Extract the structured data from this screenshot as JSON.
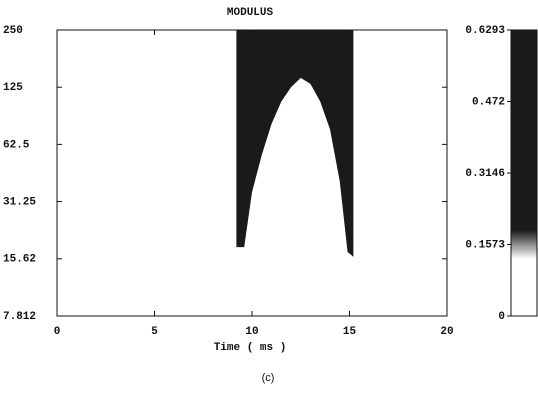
{
  "chart_data": {
    "type": "scalogram",
    "title": "MODULUS",
    "xlabel": "Time ( ms )",
    "caption": "(c)",
    "xlim": [
      0,
      20
    ],
    "xticks": [
      0,
      5,
      10,
      15,
      20
    ],
    "ylim": [
      7.812,
      250
    ],
    "yticks": [
      7.812,
      15.62,
      31.25,
      62.5,
      125,
      250
    ],
    "log_scale_y": true,
    "region": {
      "color": "#1a1a1a",
      "x": [
        9.2,
        9.6,
        10,
        10.5,
        11,
        11.5,
        12,
        12.5,
        13,
        13.5,
        14,
        14.5,
        14.9,
        15.2
      ],
      "y": [
        18,
        18,
        35,
        55,
        80,
        105,
        125,
        140,
        130,
        105,
        75,
        40,
        17,
        16
      ]
    },
    "colorbar": {
      "lim": [
        0,
        0.6293
      ],
      "ticks": [
        0,
        0.1573,
        0.3146,
        0.472,
        0.6293
      ],
      "colors": [
        "#ffffff",
        "#1a1a1a"
      ]
    }
  }
}
